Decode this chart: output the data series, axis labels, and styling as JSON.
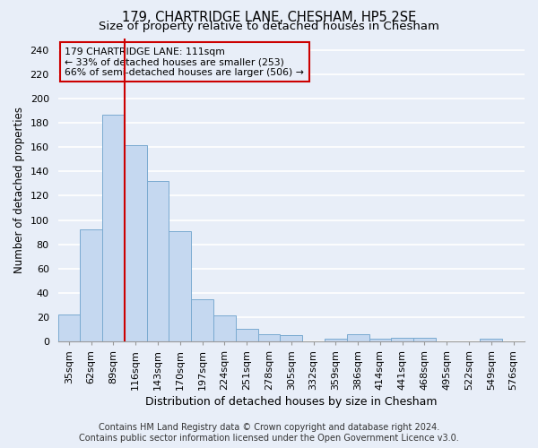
{
  "title": "179, CHARTRIDGE LANE, CHESHAM, HP5 2SE",
  "subtitle": "Size of property relative to detached houses in Chesham",
  "xlabel": "Distribution of detached houses by size in Chesham",
  "ylabel": "Number of detached properties",
  "categories": [
    "35sqm",
    "62sqm",
    "89sqm",
    "116sqm",
    "143sqm",
    "170sqm",
    "197sqm",
    "224sqm",
    "251sqm",
    "278sqm",
    "305sqm",
    "332sqm",
    "359sqm",
    "386sqm",
    "414sqm",
    "441sqm",
    "468sqm",
    "495sqm",
    "522sqm",
    "549sqm",
    "576sqm"
  ],
  "values": [
    22,
    92,
    187,
    162,
    132,
    91,
    35,
    21,
    10,
    6,
    5,
    0,
    2,
    6,
    2,
    3,
    3,
    0,
    0,
    2,
    0
  ],
  "bar_color": "#c5d8f0",
  "bar_edge_color": "#7aaad0",
  "annotation_line1": "179 CHARTRIDGE LANE: 111sqm",
  "annotation_line2": "← 33% of detached houses are smaller (253)",
  "annotation_line3": "66% of semi-detached houses are larger (506) →",
  "vline_color": "#cc0000",
  "ylim": [
    0,
    250
  ],
  "yticks": [
    0,
    20,
    40,
    60,
    80,
    100,
    120,
    140,
    160,
    180,
    200,
    220,
    240
  ],
  "footer_line1": "Contains HM Land Registry data © Crown copyright and database right 2024.",
  "footer_line2": "Contains public sector information licensed under the Open Government Licence v3.0.",
  "background_color": "#e8eef8",
  "grid_color": "#ffffff",
  "title_fontsize": 10.5,
  "subtitle_fontsize": 9.5,
  "ylabel_fontsize": 8.5,
  "xlabel_fontsize": 9,
  "tick_fontsize": 8,
  "annot_fontsize": 7.8,
  "footer_fontsize": 7
}
